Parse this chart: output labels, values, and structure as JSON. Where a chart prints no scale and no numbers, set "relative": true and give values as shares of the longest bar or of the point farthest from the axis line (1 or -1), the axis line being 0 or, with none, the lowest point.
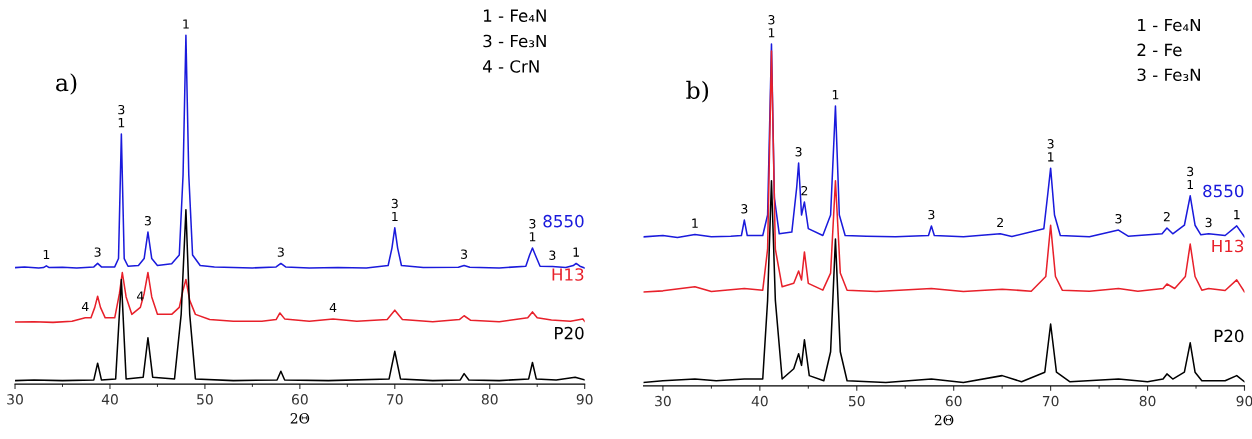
{
  "chart_data": [
    {
      "type": "line",
      "title": "a)",
      "xlabel": "2Θ",
      "relative": true,
      "xlim": [
        30,
        90
      ],
      "xticks": [
        30,
        {
          "value": 35,
          "label": null
        },
        40,
        {
          "value": 45,
          "label": null
        },
        50,
        {
          "value": 55,
          "label": null
        },
        60,
        {
          "value": 65,
          "label": null
        },
        70,
        {
          "value": 75,
          "label": null
        },
        80,
        {
          "value": 85,
          "label": null
        },
        90
      ],
      "series": [
        {
          "name": "8550",
          "color": "#1a1adc",
          "x": [
            30,
            31,
            32.5,
            33,
            33.3,
            33.6,
            35,
            36.5,
            38.3,
            38.7,
            39.1,
            40.5,
            40.9,
            41.2,
            41.5,
            41.9,
            43,
            43.6,
            44,
            44.4,
            45,
            46.5,
            47.3,
            47.7,
            48,
            48.3,
            48.7,
            49.5,
            51,
            53,
            55,
            57.5,
            58,
            58.5,
            61,
            64,
            67,
            69.3,
            69.7,
            70,
            70.3,
            70.7,
            73,
            76.7,
            77.3,
            77.9,
            81,
            83.8,
            84.2,
            84.5,
            84.8,
            85.3,
            86.6,
            88,
            88.8,
            89.1,
            89.5,
            90
          ],
          "values": [
            0.334,
            0.336,
            0.333,
            0.334,
            0.339,
            0.334,
            0.335,
            0.333,
            0.336,
            0.346,
            0.336,
            0.336,
            0.36,
            0.717,
            0.36,
            0.338,
            0.34,
            0.36,
            0.436,
            0.36,
            0.34,
            0.345,
            0.37,
            0.6,
            1.0,
            0.6,
            0.37,
            0.34,
            0.336,
            0.334,
            0.333,
            0.336,
            0.346,
            0.336,
            0.333,
            0.334,
            0.333,
            0.34,
            0.39,
            0.448,
            0.39,
            0.34,
            0.334,
            0.335,
            0.34,
            0.335,
            0.333,
            0.338,
            0.37,
            0.39,
            0.37,
            0.338,
            0.337,
            0.334,
            0.34,
            0.346,
            0.338,
            0.333
          ]
        },
        {
          "name": "H13",
          "color": "#e8202a",
          "x": [
            30,
            32,
            34,
            36,
            37.4,
            38,
            38.4,
            38.7,
            39,
            39.5,
            40.5,
            41,
            41.3,
            41.7,
            42.3,
            43.2,
            43.6,
            44,
            44.4,
            45,
            46.5,
            47.3,
            47.7,
            48,
            48.4,
            49,
            50.5,
            53,
            56,
            57.5,
            57.9,
            58.4,
            61,
            63.5,
            66,
            69.2,
            70,
            70.8,
            74,
            76.8,
            77.3,
            78,
            81,
            84,
            84.5,
            85,
            86.5,
            88.5,
            89.8,
            90
          ],
          "values": [
            0.178,
            0.179,
            0.177,
            0.18,
            0.19,
            0.19,
            0.22,
            0.252,
            0.22,
            0.19,
            0.19,
            0.26,
            0.32,
            0.25,
            0.2,
            0.22,
            0.26,
            0.32,
            0.25,
            0.2,
            0.2,
            0.22,
            0.27,
            0.3,
            0.24,
            0.2,
            0.185,
            0.18,
            0.18,
            0.185,
            0.204,
            0.187,
            0.18,
            0.187,
            0.18,
            0.185,
            0.212,
            0.185,
            0.179,
            0.185,
            0.196,
            0.183,
            0.179,
            0.19,
            0.207,
            0.19,
            0.184,
            0.18,
            0.187,
            0.18
          ]
        },
        {
          "name": "P20",
          "color": "#000000",
          "x": [
            30,
            32,
            35,
            38.3,
            38.7,
            39.1,
            40.6,
            41.2,
            41.7,
            43.5,
            44,
            44.5,
            46.8,
            47.5,
            48,
            48.4,
            49,
            53,
            57.6,
            58,
            58.4,
            63,
            69.4,
            70,
            70.6,
            74,
            76.9,
            77.3,
            77.8,
            81,
            84.1,
            84.5,
            84.9,
            87,
            89,
            90
          ],
          "values": [
            0.01,
            0.012,
            0.01,
            0.012,
            0.06,
            0.012,
            0.015,
            0.3,
            0.015,
            0.02,
            0.133,
            0.02,
            0.015,
            0.2,
            0.5,
            0.2,
            0.015,
            0.01,
            0.012,
            0.037,
            0.012,
            0.01,
            0.015,
            0.094,
            0.015,
            0.01,
            0.012,
            0.03,
            0.012,
            0.01,
            0.015,
            0.062,
            0.015,
            0.012,
            0.02,
            0.012
          ]
        }
      ],
      "annotations": [
        "1 - Fe₄N",
        "3 - Fe₃N",
        "4 - CrN",
        {
          "text": "1",
          "x": 33.3,
          "y": 0.339
        },
        {
          "text": "3",
          "x": 38.7,
          "y": 0.346
        },
        {
          "text": "3\n1",
          "x": 41.2,
          "y": 0.717
        },
        {
          "text": "3",
          "x": 44,
          "y": 0.436
        },
        {
          "text": "1",
          "x": 48,
          "y": 1.0
        },
        {
          "text": "3",
          "x": 58,
          "y": 0.346
        },
        {
          "text": "3\n1",
          "x": 70,
          "y": 0.448
        },
        {
          "text": "3",
          "x": 77.3,
          "y": 0.34
        },
        {
          "text": "3\n1",
          "x": 84.5,
          "y": 0.39
        },
        {
          "text": "3",
          "x": 86.6,
          "y": 0.337
        },
        {
          "text": "1",
          "x": 89.1,
          "y": 0.346
        },
        {
          "text": "4",
          "x": 37.4,
          "y": 0.19
        },
        {
          "text": "4",
          "x": 43.2,
          "y": 0.22
        },
        {
          "text": "4",
          "x": 63.5,
          "y": 0.187
        }
      ]
    },
    {
      "type": "line",
      "title": "b)",
      "xlabel": "2Θ",
      "relative": true,
      "xlim": [
        28,
        90
      ],
      "xticks": [
        30,
        {
          "value": 35,
          "label": null
        },
        40,
        {
          "value": 45,
          "label": null
        },
        50,
        {
          "value": 55,
          "label": null
        },
        60,
        {
          "value": 65,
          "label": null
        },
        70,
        {
          "value": 75,
          "label": null
        },
        80,
        {
          "value": 85,
          "label": null
        },
        90
      ],
      "series": [
        {
          "name": "8550",
          "color": "#1a1adc",
          "x": [
            28,
            30,
            31.5,
            33.3,
            35,
            37,
            38.1,
            38.4,
            38.7,
            40.3,
            40.8,
            41.2,
            41.5,
            42,
            43.3,
            43.8,
            44,
            44.3,
            44.6,
            45,
            46.5,
            47.3,
            47.8,
            48.2,
            48.8,
            51,
            54,
            57.4,
            57.7,
            58,
            61,
            64.8,
            66,
            69.3,
            69.7,
            70,
            70.4,
            71,
            74,
            77,
            78,
            81.5,
            82,
            82.6,
            83.8,
            84.4,
            84.9,
            85.5,
            86.3,
            88,
            89.2,
            90
          ],
          "values": [
            0.436,
            0.44,
            0.434,
            0.443,
            0.436,
            0.438,
            0.44,
            0.485,
            0.44,
            0.44,
            0.5,
            1.0,
            0.55,
            0.445,
            0.45,
            0.58,
            0.652,
            0.5,
            0.538,
            0.46,
            0.44,
            0.5,
            0.819,
            0.5,
            0.44,
            0.438,
            0.436,
            0.44,
            0.468,
            0.44,
            0.436,
            0.445,
            0.437,
            0.46,
            0.56,
            0.637,
            0.5,
            0.44,
            0.436,
            0.456,
            0.438,
            0.445,
            0.462,
            0.445,
            0.47,
            0.556,
            0.47,
            0.442,
            0.445,
            0.44,
            0.468,
            0.436
          ]
        },
        {
          "name": "H13",
          "color": "#e8202a",
          "x": [
            28,
            30,
            33.3,
            35,
            38.4,
            40.3,
            40.8,
            41.2,
            41.6,
            42.3,
            43.5,
            44,
            44.3,
            44.6,
            45,
            46.5,
            47.3,
            47.8,
            48.3,
            49,
            52,
            57.7,
            61,
            65,
            68,
            69.5,
            70,
            70.5,
            71.2,
            74,
            77,
            79,
            81.6,
            82,
            82.8,
            83.9,
            84.4,
            84.9,
            85.6,
            86.3,
            88,
            89.2,
            90
          ],
          "values": [
            0.275,
            0.278,
            0.29,
            0.276,
            0.285,
            0.28,
            0.4,
            0.98,
            0.4,
            0.29,
            0.3,
            0.336,
            0.31,
            0.392,
            0.3,
            0.28,
            0.33,
            0.6,
            0.33,
            0.28,
            0.276,
            0.285,
            0.276,
            0.283,
            0.277,
            0.32,
            0.47,
            0.32,
            0.28,
            0.277,
            0.285,
            0.277,
            0.285,
            0.298,
            0.285,
            0.32,
            0.415,
            0.32,
            0.28,
            0.285,
            0.279,
            0.31,
            0.275
          ]
        },
        {
          "name": "P20",
          "color": "#000000",
          "x": [
            28,
            30,
            33.3,
            35.5,
            38.4,
            40.3,
            40.8,
            41.2,
            41.6,
            42.3,
            43.5,
            44,
            44.3,
            44.6,
            45.1,
            46.6,
            47.3,
            47.8,
            48.3,
            49,
            53,
            57.7,
            61,
            65,
            67,
            69.4,
            70,
            70.6,
            72,
            77,
            80,
            81.6,
            82,
            82.6,
            83.8,
            84.4,
            84.9,
            85.6,
            88,
            89.2,
            90
          ],
          "values": [
            0.01,
            0.015,
            0.02,
            0.015,
            0.02,
            0.02,
            0.25,
            0.6,
            0.25,
            0.02,
            0.05,
            0.094,
            0.06,
            0.135,
            0.03,
            0.015,
            0.1,
            0.43,
            0.1,
            0.015,
            0.01,
            0.02,
            0.01,
            0.03,
            0.012,
            0.04,
            0.181,
            0.04,
            0.012,
            0.02,
            0.012,
            0.02,
            0.035,
            0.02,
            0.04,
            0.126,
            0.04,
            0.015,
            0.015,
            0.03,
            0.012
          ]
        }
      ],
      "annotations": [
        "1 - Fe₄N",
        "2 - Fe",
        "3 - Fe₃N",
        {
          "text": "3\n1",
          "x": 41.2,
          "y": 1.0
        },
        {
          "text": "1",
          "x": 47.8,
          "y": 0.819
        },
        {
          "text": "3",
          "x": 44,
          "y": 0.652
        },
        {
          "text": "2",
          "x": 44.6,
          "y": 0.538
        },
        {
          "text": "3",
          "x": 38.4,
          "y": 0.485
        },
        {
          "text": "1",
          "x": 33.3,
          "y": 0.443
        },
        {
          "text": "3",
          "x": 57.7,
          "y": 0.468
        },
        {
          "text": "2",
          "x": 64.8,
          "y": 0.445
        },
        {
          "text": "3\n1",
          "x": 70,
          "y": 0.637
        },
        {
          "text": "3",
          "x": 77,
          "y": 0.456
        },
        {
          "text": "2",
          "x": 82,
          "y": 0.462
        },
        {
          "text": "3\n1",
          "x": 84.4,
          "y": 0.556
        },
        {
          "text": "3",
          "x": 86.3,
          "y": 0.445
        },
        {
          "text": "1",
          "x": 89.2,
          "y": 0.468
        }
      ]
    }
  ]
}
